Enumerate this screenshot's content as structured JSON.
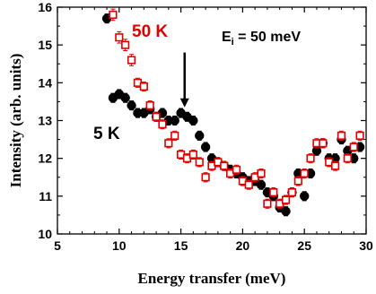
{
  "chart_data": {
    "type": "scatter",
    "xlabel": "Energy transfer (meV)",
    "ylabel": "Intensity (arb. units)",
    "xlim": [
      5,
      30
    ],
    "ylim": [
      10,
      16
    ],
    "xticks": [
      "5",
      "10",
      "15",
      "20",
      "25",
      "30"
    ],
    "yticks": [
      "10",
      "11",
      "12",
      "13",
      "14",
      "15",
      "16"
    ],
    "annotations": {
      "incident_energy_prefix": "E",
      "incident_energy_sub": "i",
      "incident_energy_value": " = 50 meV",
      "arrow_x": 15.3,
      "arrow_y_from": 14.8,
      "arrow_y_to": 13.35
    },
    "series": [
      {
        "name": "50 K",
        "color": "#e00000",
        "marker": "open-square",
        "points": [
          [
            9.5,
            15.8,
            0.15
          ],
          [
            10.0,
            15.2,
            0.15
          ],
          [
            10.5,
            15.0,
            0.15
          ],
          [
            11.0,
            14.6,
            0.15
          ],
          [
            11.5,
            14.0,
            0.12
          ],
          [
            12.0,
            13.9,
            0.12
          ],
          [
            12.5,
            13.4,
            0.12
          ],
          [
            13.0,
            13.1,
            0.12
          ],
          [
            13.5,
            12.9,
            0.12
          ],
          [
            14.0,
            12.4,
            0.12
          ],
          [
            14.5,
            12.6,
            0.12
          ],
          [
            15.0,
            12.1,
            0.12
          ],
          [
            15.5,
            12.0,
            0.12
          ],
          [
            16.0,
            12.1,
            0.12
          ],
          [
            16.5,
            11.9,
            0.12
          ],
          [
            17.0,
            11.5,
            0.12
          ],
          [
            17.5,
            11.8,
            0.12
          ],
          [
            18.0,
            11.9,
            0.12
          ],
          [
            18.5,
            11.8,
            0.12
          ],
          [
            19.0,
            11.6,
            0.12
          ],
          [
            19.5,
            11.7,
            0.12
          ],
          [
            20.0,
            11.4,
            0.12
          ],
          [
            20.5,
            11.3,
            0.12
          ],
          [
            21.0,
            11.5,
            0.12
          ],
          [
            21.5,
            11.6,
            0.12
          ],
          [
            22.0,
            10.8,
            0.12
          ],
          [
            22.5,
            11.1,
            0.12
          ],
          [
            23.0,
            10.8,
            0.12
          ],
          [
            23.5,
            10.9,
            0.12
          ],
          [
            24.0,
            11.1,
            0.12
          ],
          [
            24.5,
            11.4,
            0.12
          ],
          [
            25.0,
            11.6,
            0.12
          ],
          [
            25.5,
            12.0,
            0.12
          ],
          [
            26.0,
            12.4,
            0.12
          ],
          [
            26.5,
            12.4,
            0.12
          ],
          [
            27.0,
            11.9,
            0.12
          ],
          [
            27.5,
            11.8,
            0.12
          ],
          [
            28.0,
            12.6,
            0.12
          ],
          [
            28.5,
            12.0,
            0.12
          ],
          [
            29.0,
            12.3,
            0.12
          ],
          [
            29.5,
            12.6,
            0.12
          ]
        ]
      },
      {
        "name": "5 K",
        "color": "#000000",
        "marker": "filled-circle",
        "points": [
          [
            9.0,
            15.7,
            0.12
          ],
          [
            9.5,
            13.6,
            0.12
          ],
          [
            10.0,
            13.7,
            0.12
          ],
          [
            10.5,
            13.6,
            0.12
          ],
          [
            11.0,
            13.4,
            0.12
          ],
          [
            11.5,
            13.2,
            0.12
          ],
          [
            12.0,
            13.2,
            0.12
          ],
          [
            12.5,
            13.3,
            0.12
          ],
          [
            13.0,
            13.1,
            0.12
          ],
          [
            13.5,
            13.2,
            0.12
          ],
          [
            14.0,
            13.0,
            0.12
          ],
          [
            14.5,
            13.0,
            0.12
          ],
          [
            15.0,
            13.2,
            0.12
          ],
          [
            15.5,
            13.1,
            0.12
          ],
          [
            16.0,
            13.0,
            0.12
          ],
          [
            16.5,
            12.6,
            0.12
          ],
          [
            17.0,
            12.3,
            0.12
          ],
          [
            17.5,
            12.0,
            0.12
          ],
          [
            18.0,
            11.9,
            0.12
          ],
          [
            18.5,
            11.8,
            0.12
          ],
          [
            19.0,
            11.7,
            0.12
          ],
          [
            19.5,
            11.6,
            0.12
          ],
          [
            20.0,
            11.5,
            0.12
          ],
          [
            20.5,
            11.4,
            0.12
          ],
          [
            21.0,
            11.4,
            0.12
          ],
          [
            21.5,
            11.3,
            0.12
          ],
          [
            22.0,
            11.1,
            0.12
          ],
          [
            22.5,
            11.0,
            0.12
          ],
          [
            23.0,
            10.7,
            0.12
          ],
          [
            23.5,
            10.6,
            0.12
          ],
          [
            24.0,
            11.1,
            0.12
          ],
          [
            24.5,
            11.6,
            0.12
          ],
          [
            25.0,
            11.0,
            0.12
          ],
          [
            25.5,
            11.6,
            0.12
          ],
          [
            26.0,
            12.2,
            0.12
          ],
          [
            26.5,
            12.4,
            0.12
          ],
          [
            27.0,
            12.0,
            0.12
          ],
          [
            27.5,
            12.0,
            0.12
          ],
          [
            28.0,
            12.5,
            0.12
          ],
          [
            28.5,
            12.2,
            0.12
          ],
          [
            29.0,
            12.0,
            0.12
          ],
          [
            29.5,
            12.3,
            0.12
          ]
        ]
      }
    ]
  }
}
